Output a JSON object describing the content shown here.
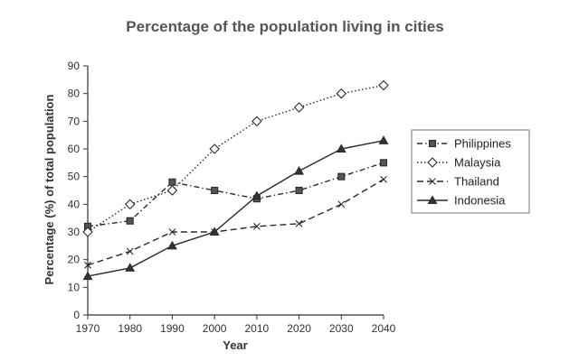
{
  "chart_data": {
    "type": "line",
    "title": "Percentage of the population living in cities",
    "xlabel": "Year",
    "ylabel": "Percentage (%) of total population",
    "x": [
      1970,
      1980,
      1990,
      2000,
      2010,
      2020,
      2030,
      2040
    ],
    "xlim": [
      1970,
      2040
    ],
    "ylim": [
      0,
      90
    ],
    "yticks": [
      0,
      10,
      20,
      30,
      40,
      50,
      60,
      70,
      80,
      90
    ],
    "grid": false,
    "legend_position": "right",
    "series": [
      {
        "name": "Philippines",
        "marker": "square",
        "dash": "dash-dot",
        "values": [
          32,
          34,
          48,
          45,
          42,
          45,
          50,
          55
        ]
      },
      {
        "name": "Malaysia",
        "marker": "diamond",
        "dash": "dotted",
        "values": [
          30,
          40,
          45,
          60,
          70,
          75,
          80,
          83
        ]
      },
      {
        "name": "Thailand",
        "marker": "cross",
        "dash": "dashed",
        "values": [
          18,
          23,
          30,
          30,
          32,
          33,
          40,
          49
        ]
      },
      {
        "name": "Indonesia",
        "marker": "triangle",
        "dash": "solid",
        "values": [
          14,
          17,
          25,
          30,
          43,
          52,
          60,
          63
        ]
      }
    ],
    "colors": {
      "line": "#2a2a2a",
      "axis": "#333333",
      "title": "#555555"
    }
  }
}
